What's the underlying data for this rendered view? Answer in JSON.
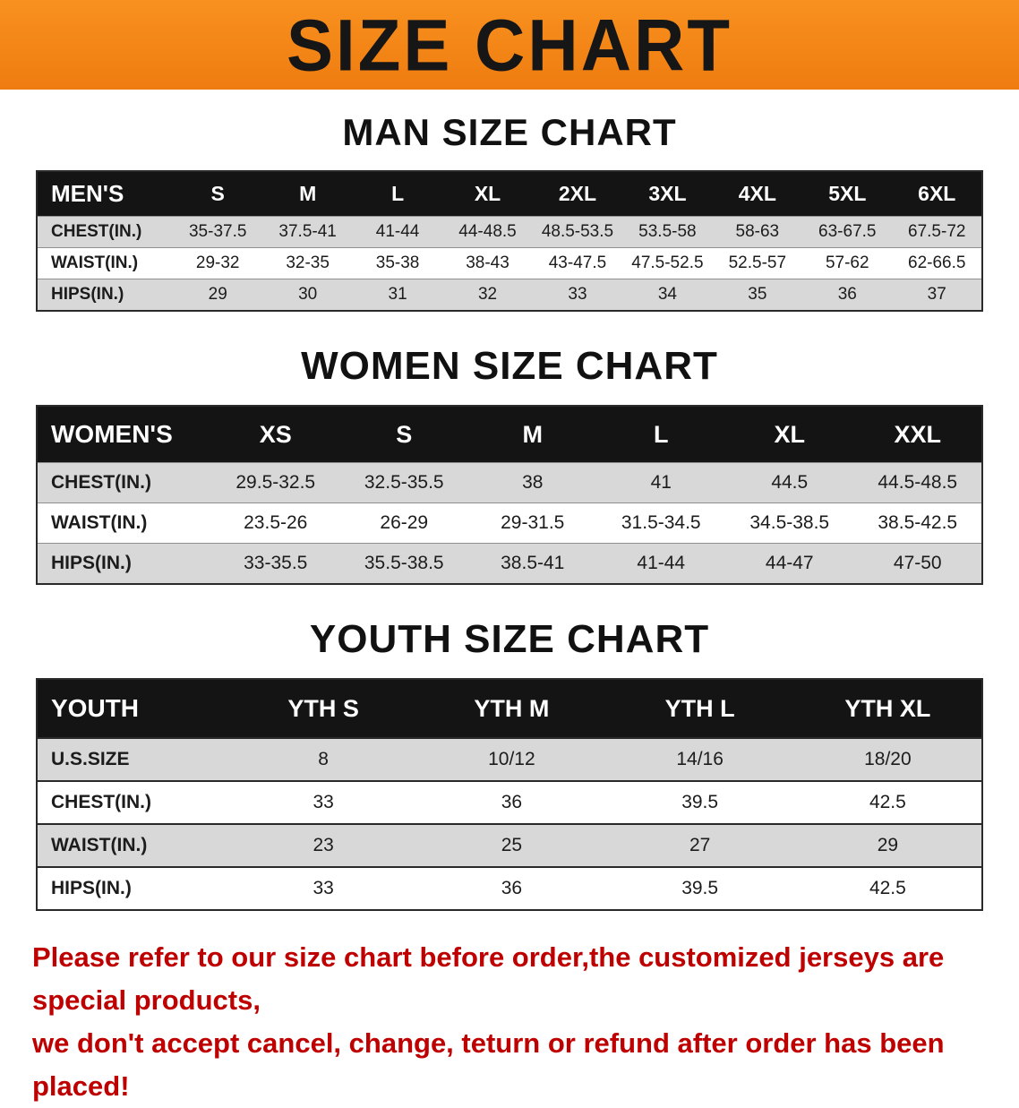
{
  "banner": {
    "title": "SIZE CHART"
  },
  "men": {
    "heading": "MAN SIZE CHART",
    "table": {
      "header": [
        "MEN'S",
        "S",
        "M",
        "L",
        "XL",
        "2XL",
        "3XL",
        "4XL",
        "5XL",
        "6XL"
      ],
      "rows": [
        [
          "CHEST(IN.)",
          "35-37.5",
          "37.5-41",
          "41-44",
          "44-48.5",
          "48.5-53.5",
          "53.5-58",
          "58-63",
          "63-67.5",
          "67.5-72"
        ],
        [
          "WAIST(IN.)",
          "29-32",
          "32-35",
          "35-38",
          "38-43",
          "43-47.5",
          "47.5-52.5",
          "52.5-57",
          "57-62",
          "62-66.5"
        ],
        [
          "HIPS(IN.)",
          "29",
          "30",
          "31",
          "32",
          "33",
          "34",
          "35",
          "36",
          "37"
        ]
      ]
    }
  },
  "women": {
    "heading": "WOMEN SIZE CHART",
    "table": {
      "header": [
        "WOMEN'S",
        "XS",
        "S",
        "M",
        "L",
        "XL",
        "XXL"
      ],
      "rows": [
        [
          "CHEST(IN.)",
          "29.5-32.5",
          "32.5-35.5",
          "38",
          "41",
          "44.5",
          "44.5-48.5"
        ],
        [
          "WAIST(IN.)",
          "23.5-26",
          "26-29",
          "29-31.5",
          "31.5-34.5",
          "34.5-38.5",
          "38.5-42.5"
        ],
        [
          "HIPS(IN.)",
          "33-35.5",
          "35.5-38.5",
          "38.5-41",
          "41-44",
          "44-47",
          "47-50"
        ]
      ]
    }
  },
  "youth": {
    "heading": "YOUTH SIZE CHART",
    "table": {
      "header": [
        "YOUTH",
        "YTH S",
        "YTH M",
        "YTH L",
        "YTH XL"
      ],
      "rows": [
        [
          "U.S.SIZE",
          "8",
          "10/12",
          "14/16",
          "18/20"
        ],
        [
          "CHEST(IN.)",
          "33",
          "36",
          "39.5",
          "42.5"
        ],
        [
          "WAIST(IN.)",
          "23",
          "25",
          "27",
          "29"
        ],
        [
          "HIPS(IN.)",
          "33",
          "36",
          "39.5",
          "42.5"
        ]
      ]
    }
  },
  "footer": {
    "line1": "Please refer to our size chart before order,the customized jerseys are special products,",
    "line2": "we don't accept cancel, change, teturn or refund after order has been placed!"
  },
  "colors": {
    "banner_orange": "#f5861a",
    "table_header_black": "#141414",
    "row_stripe_gray": "#d8d8d8",
    "footer_red": "#bf0000"
  }
}
